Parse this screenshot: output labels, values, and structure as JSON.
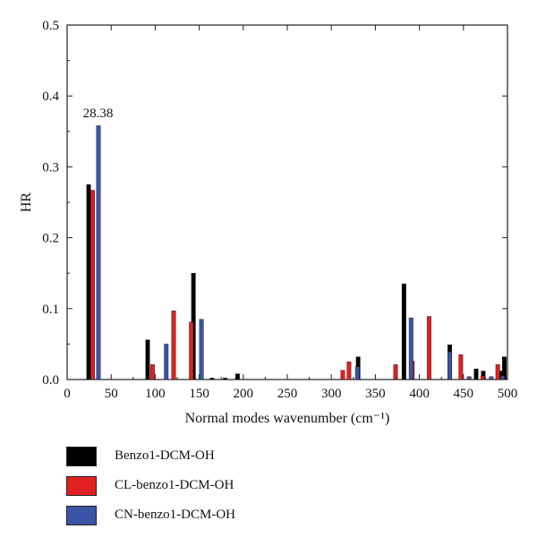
{
  "chart_data": {
    "type": "bar",
    "xlabel": "Normal modes wavenumber (cm⁻¹)",
    "ylabel": "HR",
    "xlim": [
      0,
      500
    ],
    "ylim": [
      0,
      0.5
    ],
    "x_ticks": [
      0,
      50,
      100,
      150,
      200,
      250,
      300,
      350,
      400,
      450,
      500
    ],
    "y_ticks": [
      "0.0",
      "0.1",
      "0.2",
      "0.3",
      "0.4",
      "0.5"
    ],
    "annotations": [
      {
        "text": "28.38",
        "x": 35,
        "y": 0.365
      }
    ],
    "legend_position": "bottom",
    "series": [
      {
        "name": "Benzo1-DCM-OH",
        "color": "#000000",
        "points": [
          [
            27,
            0.275
          ],
          [
            94,
            0.056
          ],
          [
            146,
            0.15
          ],
          [
            167,
            0.002
          ],
          [
            182,
            0.002
          ],
          [
            196,
            0.008
          ],
          [
            333,
            0.032
          ],
          [
            385,
            0.135
          ],
          [
            437,
            0.049
          ],
          [
            467,
            0.015
          ],
          [
            475,
            0.012
          ],
          [
            495,
            0.012
          ],
          [
            499,
            0.032
          ]
        ]
      },
      {
        "name": "CL-benzo1-DCM-OH",
        "color": "#e02020",
        "points": [
          [
            29,
            0.267
          ],
          [
            97,
            0.021
          ],
          [
            121,
            0.097
          ],
          [
            141,
            0.081
          ],
          [
            313,
            0.013
          ],
          [
            320,
            0.025
          ],
          [
            373,
            0.021
          ],
          [
            392,
            0.026
          ],
          [
            411,
            0.089
          ],
          [
            447,
            0.035
          ],
          [
            472,
            0.005
          ],
          [
            489,
            0.021
          ]
        ]
      },
      {
        "name": "CN-benzo1-DCM-OH",
        "color": "#3a55a6",
        "points": [
          [
            33,
            0.358
          ],
          [
            110,
            0.05
          ],
          [
            150,
            0.085
          ],
          [
            327,
            0.018
          ],
          [
            388,
            0.087
          ],
          [
            432,
            0.039
          ],
          [
            454,
            0.004
          ],
          [
            479,
            0.004
          ],
          [
            492,
            0.005
          ]
        ]
      }
    ]
  }
}
